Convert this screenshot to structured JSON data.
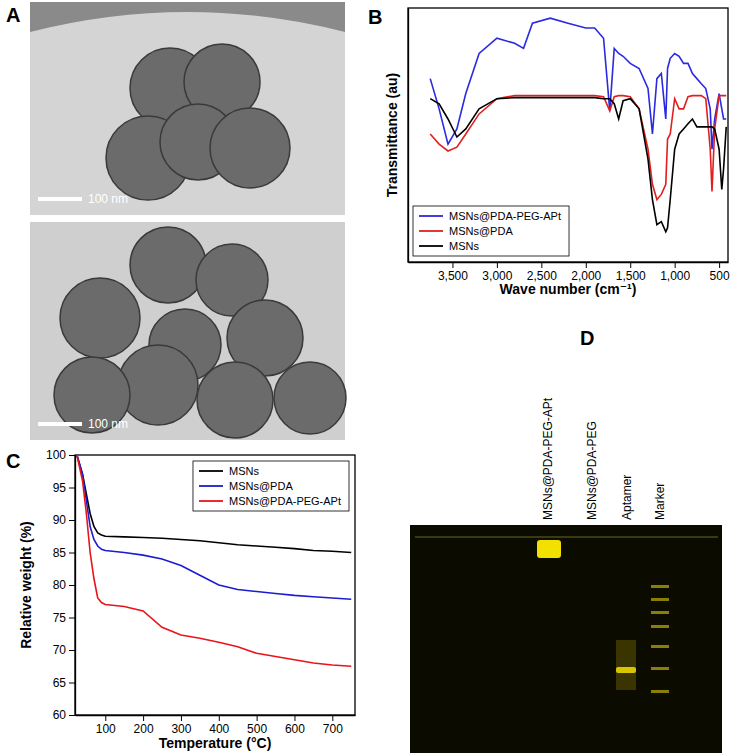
{
  "chart_data": [
    {
      "type": "line",
      "title": "B",
      "x_label": "Wave number (cm⁻¹)",
      "y_label": "Transmittance (au)",
      "x": [
        3750,
        3650,
        3550,
        3450,
        3350,
        3200,
        3000,
        2800,
        2700,
        2600,
        2400,
        2200,
        2000,
        1900,
        1800,
        1730,
        1680,
        1630,
        1580,
        1500,
        1400,
        1300,
        1250,
        1200,
        1150,
        1100,
        1080,
        1050,
        1000,
        950,
        900,
        850,
        800,
        750,
        700,
        650,
        600,
        580,
        550,
        500,
        470,
        450,
        420
      ],
      "series": [
        {
          "name": "MSNs@PDA-PEG-APt",
          "color": "#2a2ae0",
          "values": [
            72.2,
            60.3,
            46.4,
            52.4,
            66.3,
            82.1,
            88.1,
            86.1,
            84.1,
            94,
            96,
            94,
            92.1,
            92.1,
            88.1,
            59.5,
            84.1,
            82.1,
            81.0,
            78.2,
            76.2,
            68.3,
            50.4,
            72.2,
            74.2,
            56.3,
            76.2,
            80.2,
            82.1,
            81.0,
            78.2,
            78.2,
            74.2,
            72.2,
            70.2,
            68.3,
            60.3,
            44.4,
            56.3,
            66.3,
            60.3,
            56.3,
            56.3
          ]
        },
        {
          "name": "MSNs@PDA",
          "color": "#e02020",
          "values": [
            50.4,
            46.4,
            43.7,
            45.2,
            50.4,
            58.3,
            64.3,
            65.5,
            65.5,
            65.5,
            65.5,
            65.5,
            65.5,
            65.5,
            65.1,
            59.5,
            65.1,
            65.5,
            65.5,
            65.1,
            60.3,
            44.4,
            30.6,
            24.6,
            26.6,
            30.6,
            48.4,
            50.4,
            64.3,
            60.3,
            60.3,
            65.1,
            65.5,
            65.5,
            65.5,
            64.3,
            44.4,
            27.8,
            52.4,
            65.5,
            65.5,
            65.5,
            65.5
          ]
        },
        {
          "name": "MSNs",
          "color": "#000000",
          "values": [
            64.3,
            62.3,
            56.3,
            49.2,
            52.4,
            60.3,
            64.3,
            64.7,
            64.7,
            64.7,
            64.7,
            64.7,
            64.7,
            64.7,
            64.3,
            64.3,
            62.3,
            56.3,
            63.5,
            64.3,
            60.3,
            40.5,
            24.6,
            14.7,
            15.9,
            11.9,
            13.5,
            24.6,
            44.4,
            50.4,
            52.4,
            54.4,
            56.3,
            53.2,
            53.2,
            53.2,
            53.2,
            53.2,
            52.4,
            44.4,
            28.6,
            36.5,
            53.2
          ]
        }
      ],
      "xlim": [
        4000,
        400
      ],
      "xticks": [
        {
          "value": 3500,
          "label": "3,500"
        },
        {
          "value": 3000,
          "label": "3,000"
        },
        {
          "value": 2500,
          "label": "2,500"
        },
        {
          "value": 2000,
          "label": "2,000"
        },
        {
          "value": 1500,
          "label": "1,500"
        },
        {
          "value": 1000,
          "label": "1,000"
        },
        500
      ],
      "ylim": [
        0,
        100
      ],
      "tick_labels": "x",
      "legend": "lower left",
      "grid": false
    },
    {
      "type": "line",
      "title": "C",
      "x_label": "Temperature (°C)",
      "y_label": "Relative weight (%)",
      "x": [
        25,
        40,
        50,
        60,
        70,
        80,
        90,
        100,
        150,
        200,
        250,
        300,
        350,
        400,
        450,
        500,
        550,
        600,
        650,
        700,
        750
      ],
      "series": [
        {
          "name": "MSNs",
          "color": "#000000",
          "values": [
            100,
            97,
            94,
            91,
            89,
            88,
            87.7,
            87.5,
            87.4,
            87.3,
            87.2,
            87.0,
            86.8,
            86.5,
            86.2,
            86.0,
            85.8,
            85.6,
            85.3,
            85.2,
            85.0
          ]
        },
        {
          "name": "MSNs@PDA",
          "color": "#1c1cd0",
          "values": [
            100,
            97,
            93,
            89,
            87,
            86,
            85.5,
            85.3,
            85.0,
            84.6,
            84.0,
            83.0,
            81.5,
            80.0,
            79.3,
            79.0,
            78.7,
            78.4,
            78.2,
            78.0,
            77.8
          ]
        },
        {
          "name": "MSNs@PDA-PEG-APt",
          "color": "#e8141a",
          "values": [
            100,
            96,
            91,
            85,
            81,
            78,
            77.3,
            77.0,
            76.7,
            76.0,
            73.5,
            72.3,
            71.8,
            71.2,
            70.5,
            69.5,
            69.0,
            68.5,
            68.0,
            67.7,
            67.5
          ]
        }
      ],
      "xlim": [
        20,
        760
      ],
      "xticks": [
        100,
        200,
        300,
        400,
        500,
        600,
        700
      ],
      "ylim": [
        60,
        100
      ],
      "yticks": [
        60,
        65,
        70,
        75,
        80,
        85,
        90,
        95,
        100
      ],
      "legend": "upper right",
      "grid": false
    }
  ],
  "images": [
    {
      "label": "A",
      "scale_bars": [
        "100 nm",
        "100 nm"
      ]
    },
    {
      "label": "D",
      "lanes": [
        "MSNs@PDA-PEG-APt",
        "MSNs@PDA-PEG",
        "Aptamer",
        "Marker"
      ]
    }
  ]
}
